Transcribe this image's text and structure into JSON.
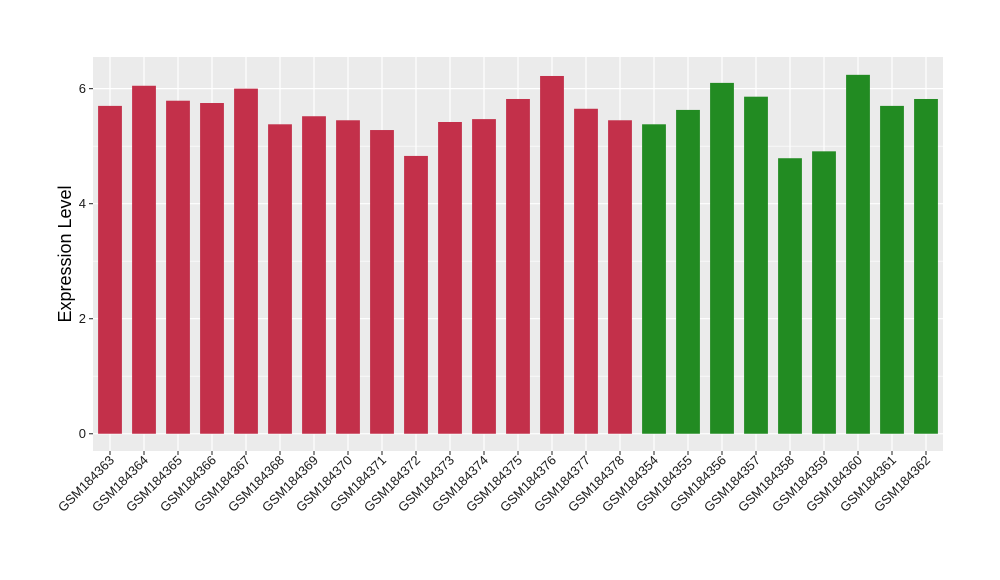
{
  "chart_data": {
    "type": "bar",
    "title": "",
    "xlabel": "",
    "ylabel": "Expression Level",
    "ylim": [
      -0.3,
      6.55
    ],
    "yticks": [
      0,
      2,
      4,
      6
    ],
    "grid": true,
    "legend": "none",
    "colors": {
      "group_1": "#c3304a",
      "group_2": "#228b22",
      "panel_background": "#ebebeb",
      "grid": "#ffffff"
    },
    "categories": [
      "GSM184363",
      "GSM184364",
      "GSM184365",
      "GSM184366",
      "GSM184367",
      "GSM184368",
      "GSM184369",
      "GSM184370",
      "GSM184371",
      "GSM184372",
      "GSM184373",
      "GSM184374",
      "GSM184375",
      "GSM184376",
      "GSM184377",
      "GSM184378",
      "GSM184354",
      "GSM184355",
      "GSM184356",
      "GSM184357",
      "GSM184358",
      "GSM184359",
      "GSM184360",
      "GSM184361",
      "GSM184362"
    ],
    "values": [
      5.7,
      6.05,
      5.79,
      5.75,
      6.0,
      5.38,
      5.52,
      5.45,
      5.28,
      4.83,
      5.42,
      5.47,
      5.82,
      6.22,
      5.65,
      5.45,
      5.38,
      5.63,
      6.1,
      5.86,
      4.79,
      4.91,
      6.24,
      5.7,
      5.82
    ],
    "groups": [
      1,
      1,
      1,
      1,
      1,
      1,
      1,
      1,
      1,
      1,
      1,
      1,
      1,
      1,
      1,
      1,
      2,
      2,
      2,
      2,
      2,
      2,
      2,
      2,
      2
    ]
  }
}
